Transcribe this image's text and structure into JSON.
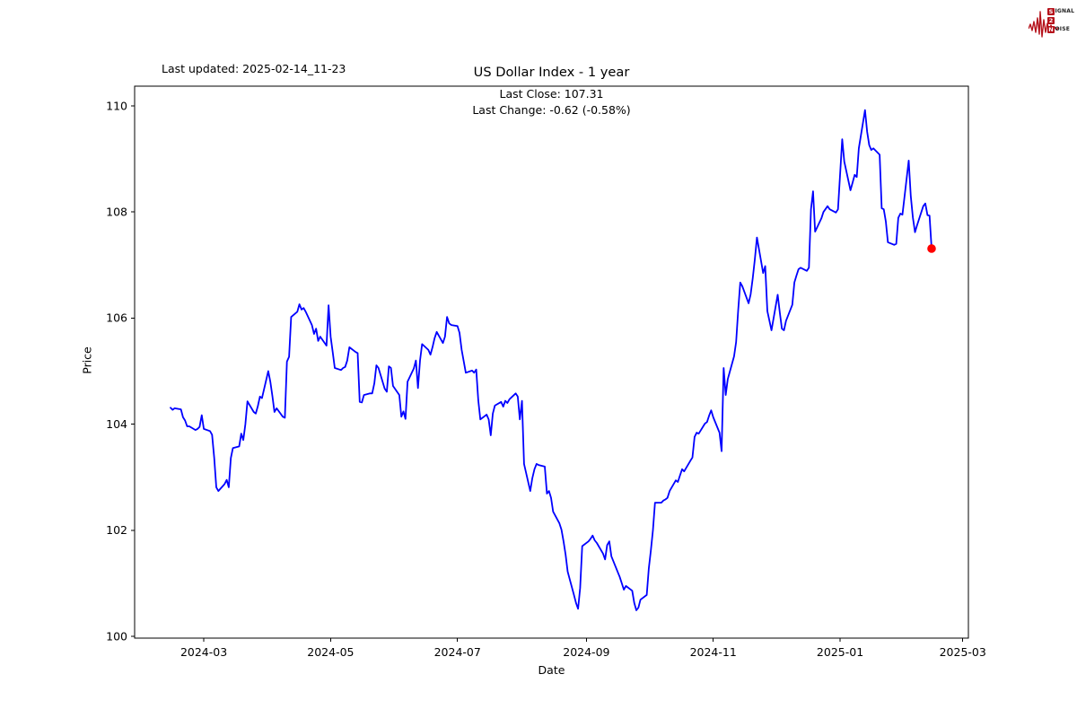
{
  "header": {
    "last_updated": "Last updated: 2025-02-14_11-23",
    "logo": {
      "row1_boxed": "S",
      "row1_rest": "IGNAL",
      "row2_boxed": "2",
      "row3_boxed": "N",
      "row3_rest": "OISE",
      "accent_color": "#b5121b"
    }
  },
  "chart_data": {
    "type": "line",
    "title": "US Dollar Index - 1 year",
    "annotations": [
      "Last Close: 107.31",
      "Last Change: -0.62 (-0.58%)"
    ],
    "xlabel": "Date",
    "ylabel": "Price",
    "ylim": [
      99.97,
      110.37
    ],
    "yticks": [
      100,
      102,
      104,
      106,
      108,
      110
    ],
    "xticks": [
      {
        "date": "2024-03-01",
        "label": "2024-03"
      },
      {
        "date": "2024-05-01",
        "label": "2024-05"
      },
      {
        "date": "2024-07-01",
        "label": "2024-07"
      },
      {
        "date": "2024-09-01",
        "label": "2024-09"
      },
      {
        "date": "2024-11-01",
        "label": "2024-11"
      },
      {
        "date": "2025-01-01",
        "label": "2025-01"
      },
      {
        "date": "2025-03-01",
        "label": "2025-03"
      }
    ],
    "x_range": [
      "2024-01-28",
      "2025-03-04"
    ],
    "grid": false,
    "legend": null,
    "line_color": "#0000ff",
    "last_point_color": "#ff0000",
    "last_close": 107.31,
    "last_change": -0.62,
    "last_change_pct": -0.58,
    "series": [
      {
        "name": "US Dollar Index",
        "points": [
          [
            "2024-02-14",
            104.31
          ],
          [
            "2024-02-15",
            104.27
          ],
          [
            "2024-02-16",
            104.3
          ],
          [
            "2024-02-19",
            104.28
          ],
          [
            "2024-02-20",
            104.13
          ],
          [
            "2024-02-21",
            104.07
          ],
          [
            "2024-02-22",
            103.96
          ],
          [
            "2024-02-23",
            103.96
          ],
          [
            "2024-02-26",
            103.89
          ],
          [
            "2024-02-27",
            103.91
          ],
          [
            "2024-02-28",
            103.95
          ],
          [
            "2024-02-29",
            104.17
          ],
          [
            "2024-03-01",
            103.91
          ],
          [
            "2024-03-04",
            103.87
          ],
          [
            "2024-03-05",
            103.8
          ],
          [
            "2024-03-06",
            103.36
          ],
          [
            "2024-03-07",
            102.81
          ],
          [
            "2024-03-08",
            102.74
          ],
          [
            "2024-03-11",
            102.87
          ],
          [
            "2024-03-12",
            102.95
          ],
          [
            "2024-03-13",
            102.81
          ],
          [
            "2024-03-14",
            103.36
          ],
          [
            "2024-03-15",
            103.55
          ],
          [
            "2024-03-18",
            103.58
          ],
          [
            "2024-03-19",
            103.82
          ],
          [
            "2024-03-20",
            103.7
          ],
          [
            "2024-03-21",
            104.0
          ],
          [
            "2024-03-22",
            104.43
          ],
          [
            "2024-03-25",
            104.23
          ],
          [
            "2024-03-26",
            104.2
          ],
          [
            "2024-03-27",
            104.34
          ],
          [
            "2024-03-28",
            104.52
          ],
          [
            "2024-03-29",
            104.49
          ],
          [
            "2024-04-01",
            105.0
          ],
          [
            "2024-04-02",
            104.8
          ],
          [
            "2024-04-03",
            104.53
          ],
          [
            "2024-04-04",
            104.23
          ],
          [
            "2024-04-05",
            104.3
          ],
          [
            "2024-04-08",
            104.14
          ],
          [
            "2024-04-09",
            104.12
          ],
          [
            "2024-04-10",
            105.18
          ],
          [
            "2024-04-11",
            105.27
          ],
          [
            "2024-04-12",
            106.02
          ],
          [
            "2024-04-15",
            106.12
          ],
          [
            "2024-04-16",
            106.26
          ],
          [
            "2024-04-17",
            106.16
          ],
          [
            "2024-04-18",
            106.19
          ],
          [
            "2024-04-19",
            106.12
          ],
          [
            "2024-04-22",
            105.87
          ],
          [
            "2024-04-23",
            105.7
          ],
          [
            "2024-04-24",
            105.8
          ],
          [
            "2024-04-25",
            105.57
          ],
          [
            "2024-04-26",
            105.65
          ],
          [
            "2024-04-29",
            105.48
          ],
          [
            "2024-04-30",
            106.24
          ],
          [
            "2024-05-01",
            105.65
          ],
          [
            "2024-05-02",
            105.36
          ],
          [
            "2024-05-03",
            105.06
          ],
          [
            "2024-05-06",
            105.02
          ],
          [
            "2024-05-07",
            105.06
          ],
          [
            "2024-05-08",
            105.08
          ],
          [
            "2024-05-09",
            105.2
          ],
          [
            "2024-05-10",
            105.45
          ],
          [
            "2024-05-13",
            105.36
          ],
          [
            "2024-05-14",
            105.34
          ],
          [
            "2024-05-15",
            104.42
          ],
          [
            "2024-05-16",
            104.41
          ],
          [
            "2024-05-17",
            104.55
          ],
          [
            "2024-05-20",
            104.58
          ],
          [
            "2024-05-21",
            104.58
          ],
          [
            "2024-05-22",
            104.77
          ],
          [
            "2024-05-23",
            105.11
          ],
          [
            "2024-05-24",
            105.06
          ],
          [
            "2024-05-27",
            104.67
          ],
          [
            "2024-05-28",
            104.61
          ],
          [
            "2024-05-29",
            105.09
          ],
          [
            "2024-05-30",
            105.06
          ],
          [
            "2024-05-31",
            104.72
          ],
          [
            "2024-06-03",
            104.55
          ],
          [
            "2024-06-04",
            104.14
          ],
          [
            "2024-06-05",
            104.24
          ],
          [
            "2024-06-06",
            104.1
          ],
          [
            "2024-06-07",
            104.8
          ],
          [
            "2024-06-10",
            105.05
          ],
          [
            "2024-06-11",
            105.2
          ],
          [
            "2024-06-12",
            104.68
          ],
          [
            "2024-06-13",
            105.2
          ],
          [
            "2024-06-14",
            105.51
          ],
          [
            "2024-06-17",
            105.4
          ],
          [
            "2024-06-18",
            105.31
          ],
          [
            "2024-06-19",
            105.45
          ],
          [
            "2024-06-20",
            105.62
          ],
          [
            "2024-06-21",
            105.74
          ],
          [
            "2024-06-24",
            105.53
          ],
          [
            "2024-06-25",
            105.65
          ],
          [
            "2024-06-26",
            106.02
          ],
          [
            "2024-06-27",
            105.9
          ],
          [
            "2024-06-28",
            105.87
          ],
          [
            "2024-07-01",
            105.85
          ],
          [
            "2024-07-02",
            105.72
          ],
          [
            "2024-07-03",
            105.4
          ],
          [
            "2024-07-05",
            104.97
          ],
          [
            "2024-07-08",
            105.01
          ],
          [
            "2024-07-09",
            104.97
          ],
          [
            "2024-07-10",
            105.03
          ],
          [
            "2024-07-11",
            104.45
          ],
          [
            "2024-07-12",
            104.09
          ],
          [
            "2024-07-15",
            104.18
          ],
          [
            "2024-07-16",
            104.09
          ],
          [
            "2024-07-17",
            103.79
          ],
          [
            "2024-07-18",
            104.2
          ],
          [
            "2024-07-19",
            104.35
          ],
          [
            "2024-07-22",
            104.42
          ],
          [
            "2024-07-23",
            104.33
          ],
          [
            "2024-07-24",
            104.44
          ],
          [
            "2024-07-25",
            104.4
          ],
          [
            "2024-07-26",
            104.47
          ],
          [
            "2024-07-29",
            104.58
          ],
          [
            "2024-07-30",
            104.52
          ],
          [
            "2024-07-31",
            104.09
          ],
          [
            "2024-08-01",
            104.44
          ],
          [
            "2024-08-02",
            103.25
          ],
          [
            "2024-08-05",
            102.74
          ],
          [
            "2024-08-06",
            102.98
          ],
          [
            "2024-08-07",
            103.15
          ],
          [
            "2024-08-08",
            103.25
          ],
          [
            "2024-08-09",
            103.23
          ],
          [
            "2024-08-12",
            103.2
          ],
          [
            "2024-08-13",
            102.69
          ],
          [
            "2024-08-14",
            102.74
          ],
          [
            "2024-08-15",
            102.61
          ],
          [
            "2024-08-16",
            102.35
          ],
          [
            "2024-08-19",
            102.13
          ],
          [
            "2024-08-20",
            102.01
          ],
          [
            "2024-08-21",
            101.79
          ],
          [
            "2024-08-22",
            101.54
          ],
          [
            "2024-08-23",
            101.22
          ],
          [
            "2024-08-26",
            100.78
          ],
          [
            "2024-08-27",
            100.63
          ],
          [
            "2024-08-28",
            100.52
          ],
          [
            "2024-08-29",
            100.91
          ],
          [
            "2024-08-30",
            101.7
          ],
          [
            "2024-09-02",
            101.79
          ],
          [
            "2024-09-03",
            101.84
          ],
          [
            "2024-09-04",
            101.9
          ],
          [
            "2024-09-05",
            101.81
          ],
          [
            "2024-09-06",
            101.76
          ],
          [
            "2024-09-09",
            101.56
          ],
          [
            "2024-09-10",
            101.45
          ],
          [
            "2024-09-11",
            101.72
          ],
          [
            "2024-09-12",
            101.79
          ],
          [
            "2024-09-13",
            101.51
          ],
          [
            "2024-09-16",
            101.22
          ],
          [
            "2024-09-17",
            101.12
          ],
          [
            "2024-09-18",
            101.0
          ],
          [
            "2024-09-19",
            100.88
          ],
          [
            "2024-09-20",
            100.95
          ],
          [
            "2024-09-23",
            100.86
          ],
          [
            "2024-09-24",
            100.63
          ],
          [
            "2024-09-25",
            100.49
          ],
          [
            "2024-09-26",
            100.54
          ],
          [
            "2024-09-27",
            100.69
          ],
          [
            "2024-09-30",
            100.78
          ],
          [
            "2024-10-01",
            101.28
          ],
          [
            "2024-10-02",
            101.62
          ],
          [
            "2024-10-03",
            102.0
          ],
          [
            "2024-10-04",
            102.52
          ],
          [
            "2024-10-07",
            102.52
          ],
          [
            "2024-10-08",
            102.56
          ],
          [
            "2024-10-09",
            102.58
          ],
          [
            "2024-10-10",
            102.61
          ],
          [
            "2024-10-11",
            102.74
          ],
          [
            "2024-10-14",
            102.94
          ],
          [
            "2024-10-15",
            102.91
          ],
          [
            "2024-10-16",
            103.03
          ],
          [
            "2024-10-17",
            103.15
          ],
          [
            "2024-10-18",
            103.11
          ],
          [
            "2024-10-21",
            103.31
          ],
          [
            "2024-10-22",
            103.37
          ],
          [
            "2024-10-23",
            103.76
          ],
          [
            "2024-10-24",
            103.84
          ],
          [
            "2024-10-25",
            103.82
          ],
          [
            "2024-10-28",
            104.01
          ],
          [
            "2024-10-29",
            104.04
          ],
          [
            "2024-10-30",
            104.16
          ],
          [
            "2024-10-31",
            104.26
          ],
          [
            "2024-11-01",
            104.13
          ],
          [
            "2024-11-04",
            103.84
          ],
          [
            "2024-11-05",
            103.49
          ],
          [
            "2024-11-06",
            105.06
          ],
          [
            "2024-11-07",
            104.55
          ],
          [
            "2024-11-08",
            104.85
          ],
          [
            "2024-11-11",
            105.28
          ],
          [
            "2024-11-12",
            105.55
          ],
          [
            "2024-11-13",
            106.15
          ],
          [
            "2024-11-14",
            106.67
          ],
          [
            "2024-11-15",
            106.6
          ],
          [
            "2024-11-18",
            106.28
          ],
          [
            "2024-11-19",
            106.45
          ],
          [
            "2024-11-20",
            106.75
          ],
          [
            "2024-11-21",
            107.1
          ],
          [
            "2024-11-22",
            107.52
          ],
          [
            "2024-11-25",
            106.85
          ],
          [
            "2024-11-26",
            106.98
          ],
          [
            "2024-11-27",
            106.13
          ],
          [
            "2024-11-29",
            105.77
          ],
          [
            "2024-12-02",
            106.44
          ],
          [
            "2024-12-03",
            106.1
          ],
          [
            "2024-12-04",
            105.8
          ],
          [
            "2024-12-05",
            105.77
          ],
          [
            "2024-12-06",
            105.95
          ],
          [
            "2024-12-09",
            106.25
          ],
          [
            "2024-12-10",
            106.67
          ],
          [
            "2024-12-11",
            106.8
          ],
          [
            "2024-12-12",
            106.92
          ],
          [
            "2024-12-13",
            106.95
          ],
          [
            "2024-12-16",
            106.89
          ],
          [
            "2024-12-17",
            106.95
          ],
          [
            "2024-12-18",
            108.05
          ],
          [
            "2024-12-19",
            108.39
          ],
          [
            "2024-12-20",
            107.63
          ],
          [
            "2024-12-23",
            107.88
          ],
          [
            "2024-12-24",
            108.0
          ],
          [
            "2024-12-26",
            108.11
          ],
          [
            "2024-12-27",
            108.05
          ],
          [
            "2024-12-30",
            107.99
          ],
          [
            "2024-12-31",
            108.05
          ],
          [
            "2025-01-02",
            109.37
          ],
          [
            "2025-01-03",
            108.95
          ],
          [
            "2025-01-06",
            108.41
          ],
          [
            "2025-01-07",
            108.55
          ],
          [
            "2025-01-08",
            108.7
          ],
          [
            "2025-01-09",
            108.66
          ],
          [
            "2025-01-10",
            109.2
          ],
          [
            "2025-01-13",
            109.92
          ],
          [
            "2025-01-14",
            109.51
          ],
          [
            "2025-01-15",
            109.26
          ],
          [
            "2025-01-16",
            109.17
          ],
          [
            "2025-01-17",
            109.2
          ],
          [
            "2025-01-20",
            109.08
          ],
          [
            "2025-01-21",
            108.07
          ],
          [
            "2025-01-22",
            108.05
          ],
          [
            "2025-01-23",
            107.82
          ],
          [
            "2025-01-24",
            107.43
          ],
          [
            "2025-01-27",
            107.38
          ],
          [
            "2025-01-28",
            107.4
          ],
          [
            "2025-01-29",
            107.89
          ],
          [
            "2025-01-30",
            107.97
          ],
          [
            "2025-01-31",
            107.95
          ],
          [
            "2025-02-03",
            108.97
          ],
          [
            "2025-02-04",
            108.3
          ],
          [
            "2025-02-05",
            107.9
          ],
          [
            "2025-02-06",
            107.62
          ],
          [
            "2025-02-07",
            107.75
          ],
          [
            "2025-02-10",
            108.11
          ],
          [
            "2025-02-11",
            108.16
          ],
          [
            "2025-02-12",
            107.94
          ],
          [
            "2025-02-13",
            107.93
          ],
          [
            "2025-02-14",
            107.31
          ]
        ]
      }
    ]
  }
}
